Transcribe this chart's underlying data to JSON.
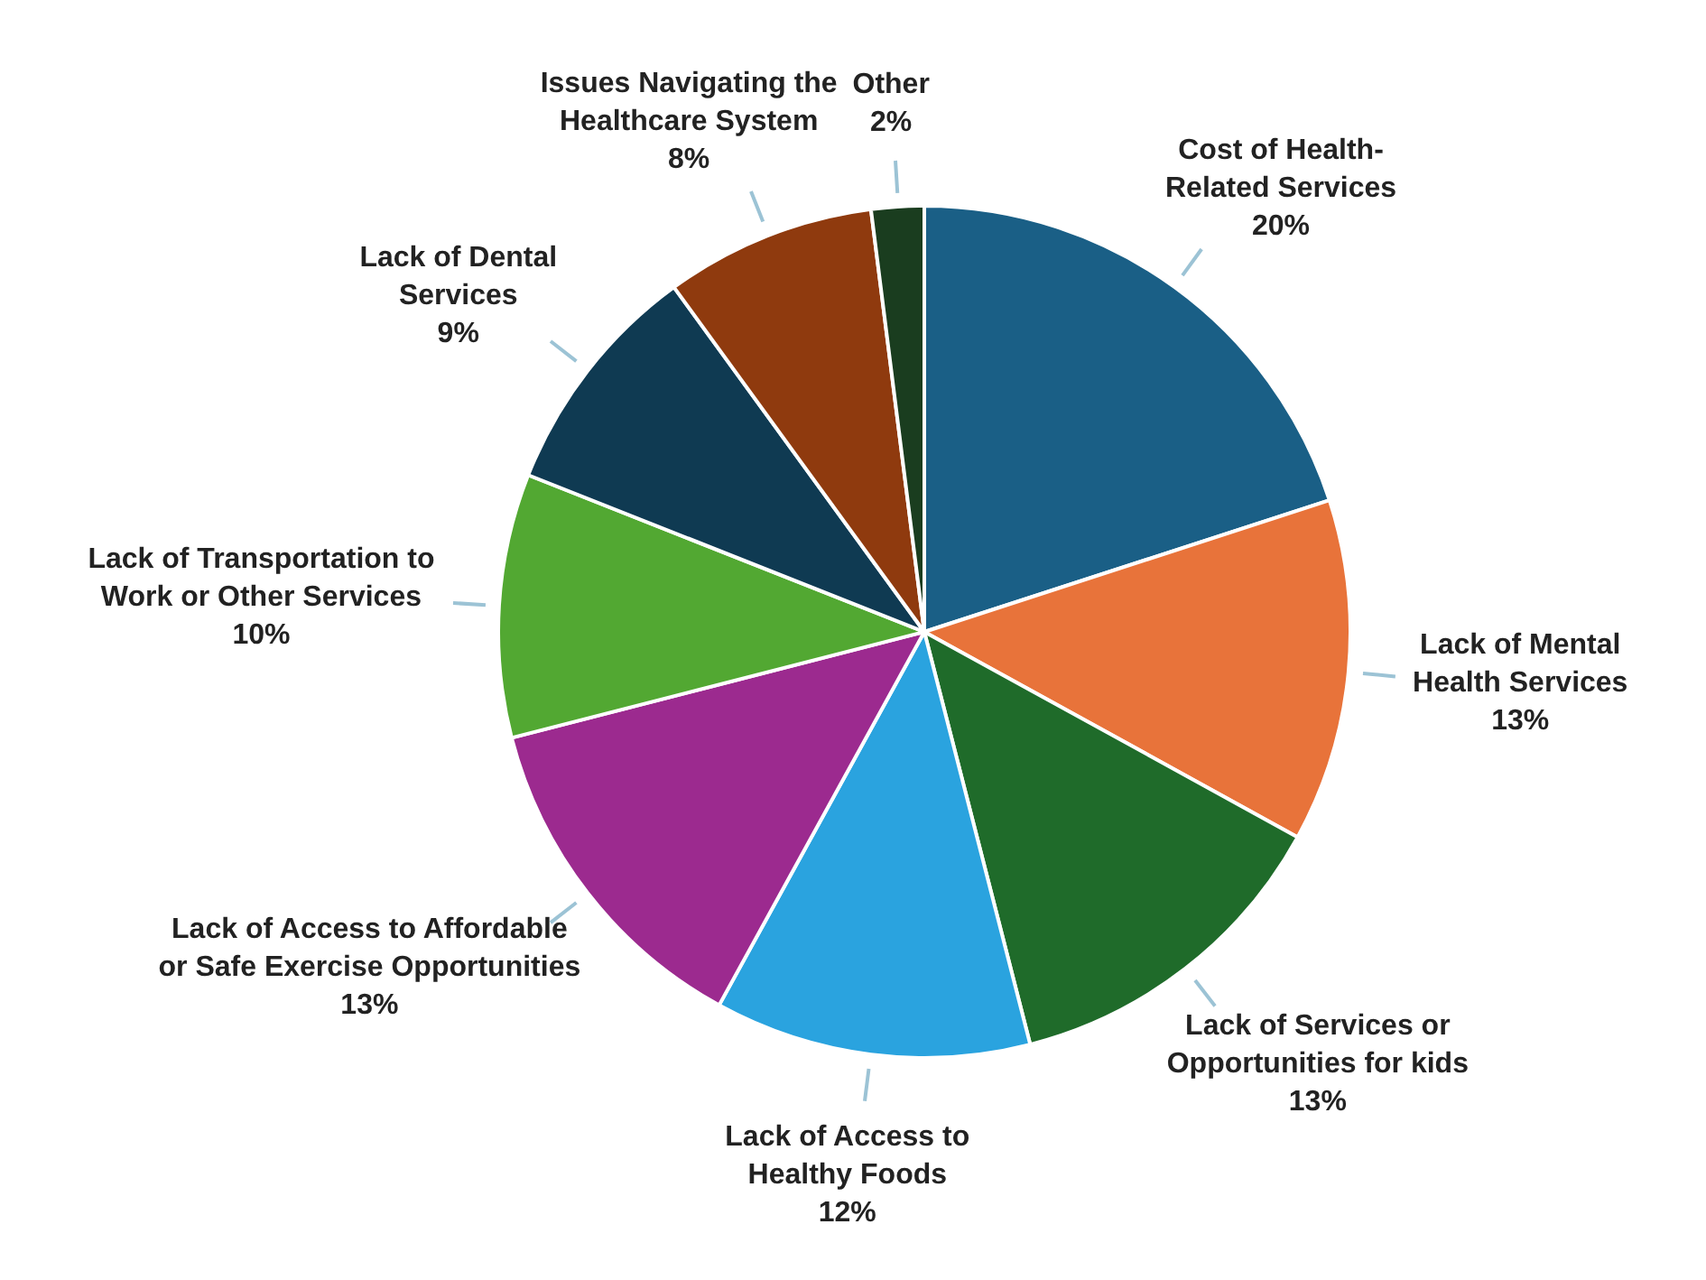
{
  "chart_data": {
    "type": "pie",
    "categories": [
      "Cost of Health-Related Services",
      "Lack of Mental Health Services",
      "Lack of Services or Opportunities for kids",
      "Lack of Access to Healthy Foods",
      "Lack of Access to Affordable or Safe Exercise Opportunities",
      "Lack of Transportation to Work or Other Services",
      "Lack of Dental Services",
      "Issues Navigating the Healthcare System",
      "Other"
    ],
    "values": [
      20,
      13,
      13,
      12,
      13,
      10,
      9,
      8,
      2
    ],
    "value_labels": [
      "20%",
      "13%",
      "13%",
      "12%",
      "13%",
      "10%",
      "9%",
      "8%",
      "2%"
    ],
    "colors": [
      "#1a5f86",
      "#e8733a",
      "#1f6b2a",
      "#2aa3df",
      "#9c2a8f",
      "#52a832",
      "#0f3a52",
      "#8f3a0e",
      "#1a3d1f"
    ],
    "legend": false
  }
}
